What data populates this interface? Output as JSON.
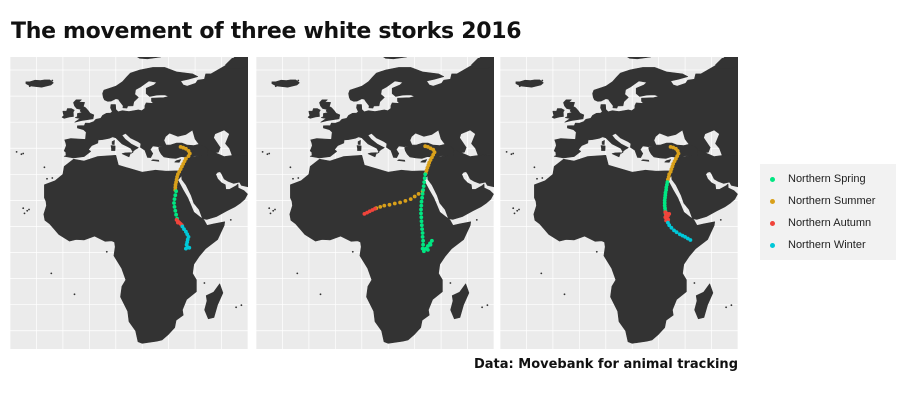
{
  "title": "The movement of three white storks 2016",
  "caption": "Data: Movebank for animal tracking",
  "colors": {
    "panel_background": "#ebebeb",
    "grid": "#ffffff",
    "land": "#333333"
  },
  "legend": {
    "items": [
      {
        "label": "Northern Spring",
        "color": "#00e682"
      },
      {
        "label": "Northern Summer",
        "color": "#d9a01a"
      },
      {
        "label": "Northern Autumn",
        "color": "#f0443b"
      },
      {
        "label": "Northern Winter",
        "color": "#00c8d8"
      }
    ]
  },
  "map": {
    "projection": "equirectangular",
    "lon_range": [
      -30,
      60
    ],
    "lat_range": [
      -37,
      75
    ],
    "grid_step_degrees": 10
  },
  "storks": [
    {
      "season_tracks": [
        {
          "season": "Northern Summer",
          "points": [
            [
              34.5,
              40.5
            ],
            [
              35.5,
              40.2
            ],
            [
              36.5,
              39.8
            ],
            [
              37.5,
              39.0
            ],
            [
              38.0,
              38.0
            ],
            [
              37.5,
              37.0
            ],
            [
              36.5,
              36.0
            ],
            [
              36.0,
              35.0
            ],
            [
              35.5,
              34.0
            ],
            [
              35.0,
              33.0
            ],
            [
              34.5,
              32.0
            ],
            [
              34.0,
              31.0
            ],
            [
              33.5,
              30.0
            ],
            [
              33.2,
              29.0
            ],
            [
              33.0,
              28.0
            ],
            [
              32.8,
              27.0
            ],
            [
              32.6,
              26.0
            ],
            [
              32.5,
              25.0
            ],
            [
              32.5,
              24.0
            ]
          ]
        },
        {
          "season": "Northern Spring",
          "points": [
            [
              32.8,
              23.5
            ],
            [
              32.5,
              22.0
            ],
            [
              32.2,
              20.5
            ],
            [
              32.0,
              19.0
            ],
            [
              32.2,
              17.5
            ],
            [
              32.5,
              16.0
            ],
            [
              32.8,
              14.5
            ],
            [
              33.2,
              13.0
            ]
          ]
        },
        {
          "season": "Northern Autumn",
          "points": [
            [
              33.0,
              12.5
            ],
            [
              33.5,
              12.0
            ],
            [
              34.0,
              11.5
            ],
            [
              34.5,
              11.0
            ],
            [
              35.0,
              10.5
            ],
            [
              33.5,
              11.5
            ]
          ]
        },
        {
          "season": "Northern Winter",
          "points": [
            [
              35.2,
              10.0
            ],
            [
              35.8,
              9.0
            ],
            [
              36.5,
              8.0
            ],
            [
              37.0,
              7.0
            ],
            [
              37.5,
              6.0
            ],
            [
              37.2,
              5.0
            ],
            [
              37.0,
              4.0
            ],
            [
              36.8,
              3.0
            ],
            [
              37.2,
              2.0
            ],
            [
              36.5,
              1.5
            ],
            [
              37.8,
              1.8
            ]
          ]
        }
      ]
    },
    {
      "season_tracks": [
        {
          "season": "Northern Summer",
          "points": [
            [
              34.0,
              40.8
            ],
            [
              35.0,
              40.5
            ],
            [
              36.0,
              40.0
            ],
            [
              37.0,
              39.5
            ],
            [
              37.5,
              38.5
            ],
            [
              37.0,
              37.5
            ],
            [
              36.5,
              36.5
            ],
            [
              36.0,
              35.5
            ],
            [
              35.5,
              34.5
            ],
            [
              35.2,
              33.5
            ],
            [
              34.8,
              32.5
            ],
            [
              34.5,
              31.5
            ],
            [
              34.2,
              30.5
            ],
            [
              33.0,
              23.5
            ],
            [
              31.5,
              22.5
            ],
            [
              30.0,
              21.5
            ],
            [
              28.5,
              20.5
            ],
            [
              26.5,
              19.8
            ],
            [
              24.5,
              19.2
            ],
            [
              22.5,
              18.8
            ],
            [
              20.5,
              18.3
            ],
            [
              18.5,
              18.0
            ],
            [
              17.0,
              17.5
            ],
            [
              15.5,
              17.0
            ]
          ]
        },
        {
          "season": "Northern Autumn",
          "points": [
            [
              15.0,
              16.8
            ],
            [
              14.0,
              16.3
            ],
            [
              13.0,
              15.8
            ],
            [
              12.0,
              15.3
            ],
            [
              11.0,
              14.8
            ]
          ]
        },
        {
          "season": "Northern Spring",
          "points": [
            [
              34.0,
              30.0
            ],
            [
              33.8,
              28.5
            ],
            [
              33.6,
              27.0
            ],
            [
              33.4,
              25.5
            ],
            [
              33.2,
              24.0
            ],
            [
              33.0,
              22.5
            ],
            [
              32.8,
              21.0
            ],
            [
              32.6,
              19.5
            ],
            [
              32.5,
              18.0
            ],
            [
              32.4,
              16.5
            ],
            [
              32.4,
              15.0
            ],
            [
              32.5,
              13.5
            ],
            [
              32.6,
              12.0
            ],
            [
              32.7,
              10.5
            ],
            [
              32.8,
              9.0
            ],
            [
              33.0,
              7.5
            ],
            [
              33.0,
              6.0
            ],
            [
              33.2,
              4.5
            ],
            [
              33.2,
              3.0
            ],
            [
              33.0,
              1.5
            ],
            [
              33.5,
              0.5
            ],
            [
              34.2,
              1.5
            ],
            [
              35.0,
              2.5
            ],
            [
              35.8,
              3.5
            ],
            [
              36.5,
              4.5
            ],
            [
              36.0,
              3.0
            ],
            [
              35.0,
              1.0
            ]
          ]
        }
      ]
    },
    {
      "season_tracks": [
        {
          "season": "Northern Summer",
          "points": [
            [
              34.5,
              40.5
            ],
            [
              35.5,
              40.3
            ],
            [
              36.5,
              39.8
            ],
            [
              37.2,
              39.0
            ],
            [
              37.5,
              38.0
            ],
            [
              37.0,
              37.0
            ],
            [
              36.5,
              36.0
            ],
            [
              36.0,
              35.0
            ],
            [
              35.5,
              34.0
            ],
            [
              35.2,
              33.0
            ],
            [
              34.8,
              32.0
            ],
            [
              34.5,
              31.0
            ],
            [
              34.0,
              30.0
            ],
            [
              33.8,
              29.0
            ],
            [
              33.5,
              28.0
            ]
          ]
        },
        {
          "season": "Northern Spring",
          "points": [
            [
              33.3,
              27.0
            ],
            [
              33.1,
              26.0
            ],
            [
              32.9,
              25.0
            ],
            [
              32.8,
              24.0
            ],
            [
              32.6,
              23.0
            ],
            [
              32.5,
              22.0
            ],
            [
              32.4,
              21.0
            ],
            [
              32.3,
              20.0
            ],
            [
              32.3,
              19.0
            ],
            [
              32.3,
              18.0
            ],
            [
              32.4,
              17.0
            ],
            [
              32.5,
              16.0
            ],
            [
              32.6,
              15.0
            ],
            [
              32.8,
              14.0
            ],
            [
              33.0,
              13.0
            ]
          ]
        },
        {
          "season": "Northern Autumn",
          "points": [
            [
              32.5,
              15.5
            ],
            [
              33.0,
              15.0
            ],
            [
              32.8,
              14.3
            ],
            [
              33.5,
              14.0
            ],
            [
              32.5,
              13.5
            ],
            [
              33.0,
              13.0
            ],
            [
              33.6,
              12.6
            ],
            [
              32.8,
              12.3
            ],
            [
              33.4,
              12.0
            ],
            [
              34.0,
              14.8
            ]
          ]
        },
        {
          "season": "Northern Winter",
          "points": [
            [
              33.5,
              11.5
            ],
            [
              34.0,
              10.5
            ],
            [
              34.8,
              9.5
            ],
            [
              35.8,
              8.5
            ],
            [
              36.8,
              7.8
            ],
            [
              38.0,
              7.0
            ],
            [
              39.0,
              6.5
            ],
            [
              40.0,
              6.0
            ],
            [
              41.0,
              5.4
            ],
            [
              42.0,
              4.8
            ]
          ]
        }
      ]
    }
  ]
}
